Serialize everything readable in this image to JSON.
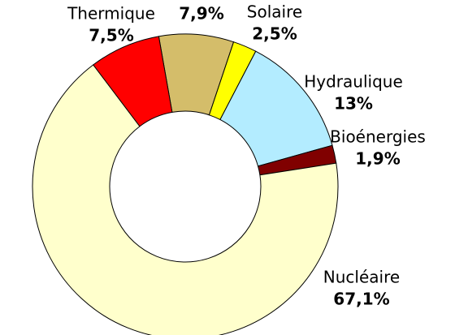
{
  "chart_data": {
    "type": "donut",
    "categories": [
      null,
      "Solaire",
      "Hydraulique",
      "Bioénergies",
      "Nucléaire",
      "Thermique"
    ],
    "values": [
      7.9,
      2.5,
      13,
      1.9,
      67.1,
      7.5
    ],
    "value_labels": [
      "7,9%",
      "2,5%",
      "13%",
      "1,9%",
      "67,1%",
      "7,5%"
    ],
    "colors": [
      "#d4bd6a",
      "#ffff00",
      "#b3ecff",
      "#800000",
      "#ffffcc",
      "#ff0000"
    ]
  }
}
